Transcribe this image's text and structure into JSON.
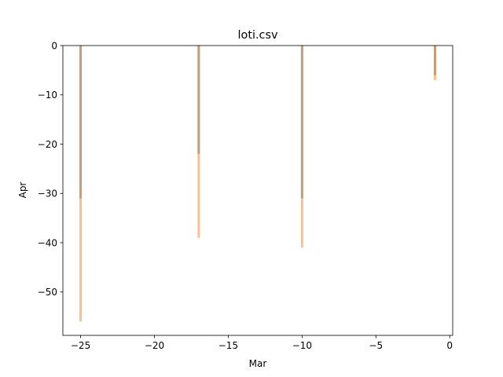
{
  "chart_data": {
    "type": "bar",
    "title": "loti.csv",
    "xlabel": "Mar",
    "ylabel": "Apr",
    "xlim": [
      -26.2,
      0.2
    ],
    "ylim": [
      -58.8,
      0
    ],
    "x_ticks": [
      -25,
      -20,
      -15,
      -10,
      -5,
      0
    ],
    "x_tick_labels": [
      "−25",
      "−20",
      "−15",
      "−10",
      "−5",
      "0"
    ],
    "y_ticks": [
      0,
      -10,
      -20,
      -30,
      -40,
      -50
    ],
    "y_tick_labels": [
      "0",
      "−10",
      "−20",
      "−30",
      "−40",
      "−50"
    ],
    "grid": false,
    "legend": "none",
    "series": [
      {
        "color": "#1f77b4",
        "opacity": 0.5,
        "x": [
          -25,
          -17,
          -10,
          -1
        ],
        "values": [
          -31,
          -22,
          -31,
          -6
        ]
      },
      {
        "color": "#ff7f0e",
        "opacity": 0.5,
        "x": [
          -25,
          -17,
          -10,
          -1
        ],
        "values": [
          -56,
          -39,
          -41,
          -7
        ],
        "starts": [
          -25,
          -17,
          -10,
          -1
        ]
      }
    ]
  }
}
